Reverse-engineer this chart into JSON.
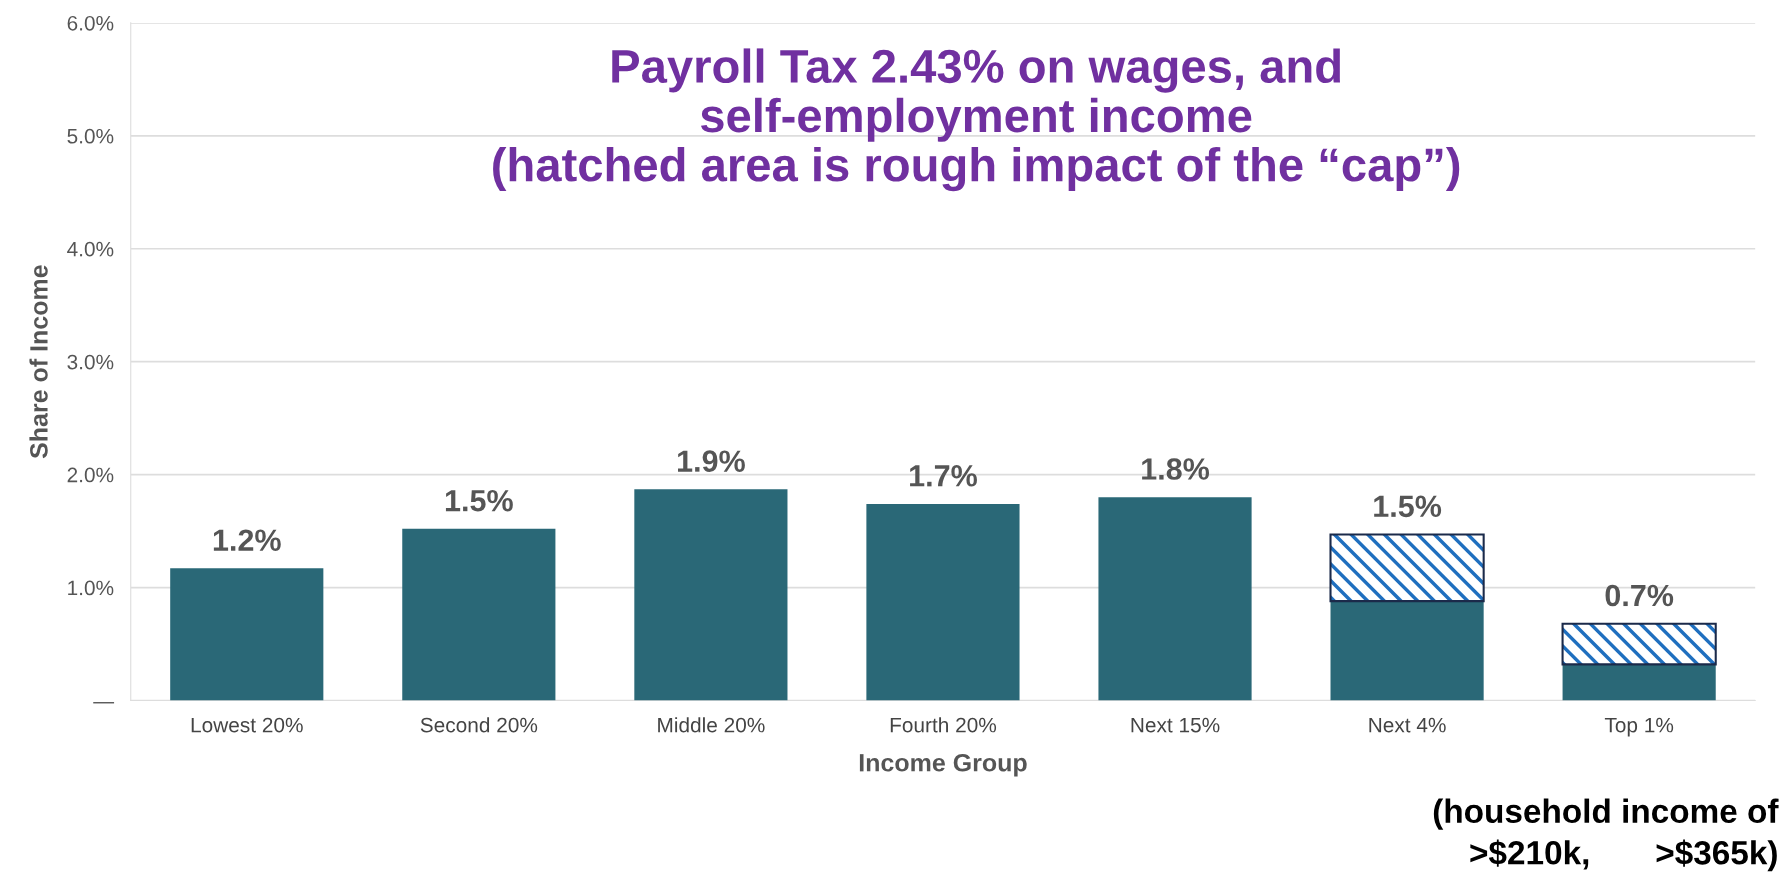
{
  "chart_data": {
    "type": "bar",
    "stacked": true,
    "title": "Payroll Tax 2.43% on wages, and\nself-employment income\n(hatched area is rough impact of the “cap”)",
    "xlabel": "Income Group",
    "ylabel": "Share of Income",
    "categories": [
      "Lowest 20%",
      "Second 20%",
      "Middle 20%",
      "Fourth 20%",
      "Next 15%",
      "Next 4%",
      "Top 1%"
    ],
    "series": [
      {
        "color": "#2a6877",
        "values": [
          1.17,
          1.52,
          1.87,
          1.74,
          1.8,
          0.88,
          0.32
        ]
      },
      {
        "color": "#1f6fbf",
        "values": [
          null,
          null,
          null,
          null,
          null,
          0.59,
          0.36
        ]
      }
    ],
    "totals": [
      "1.2%",
      "1.5%",
      "1.9%",
      "1.7%",
      "1.8%",
      "1.5%",
      "0.7%"
    ],
    "ylim": [
      0,
      6
    ],
    "yticks": [
      {
        "value": 0,
        "label": "—"
      },
      {
        "value": 1,
        "label": "1.0%"
      },
      {
        "value": 2,
        "label": "2.0%"
      },
      {
        "value": 3,
        "label": "3.0%"
      },
      {
        "value": 4,
        "label": "4.0%"
      },
      {
        "value": 5,
        "label": "5.0%"
      },
      {
        "value": 6,
        "label": "6.0%"
      }
    ],
    "grid": "y",
    "legend": false,
    "annotations": [
      "(household income of\n>$210k,       >$365k)"
    ]
  }
}
